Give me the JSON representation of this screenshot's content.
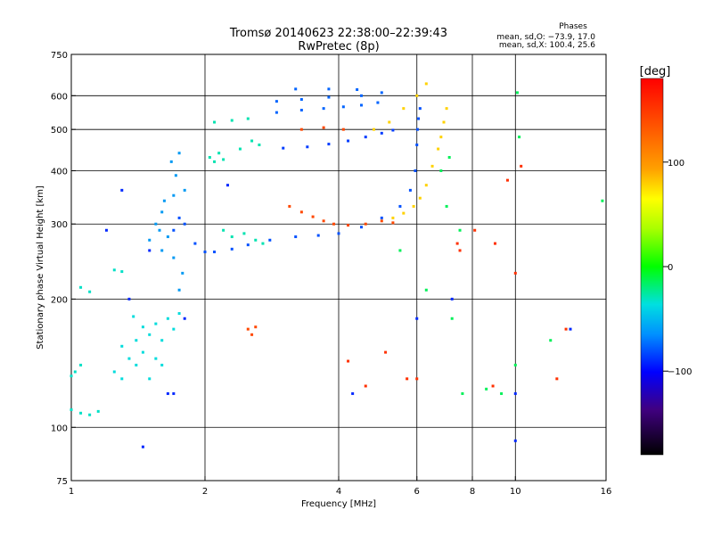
{
  "chart_data": {
    "type": "scatter",
    "title": "Tromsø 20140623 22:38:00–22:39:43",
    "subtitle": "RwPretec (8p)",
    "xlabel": "Frequency [MHz]",
    "ylabel": "Stationary phase Virtual Height [km]",
    "x_scale": "log",
    "y_scale": "log",
    "xlim": [
      1,
      16
    ],
    "ylim": [
      75,
      750
    ],
    "x_ticks": [
      1,
      2,
      4,
      6,
      8,
      10,
      16
    ],
    "x_tick_labels": [
      "1",
      "2",
      "4",
      "6",
      "8",
      "10",
      "16"
    ],
    "x_grid": [
      2,
      4,
      6,
      8,
      10
    ],
    "y_ticks": [
      75,
      100,
      200,
      300,
      400,
      500,
      600,
      750
    ],
    "y_tick_labels": [
      "75",
      "100",
      "200",
      "300",
      "400",
      "500",
      "600",
      "750"
    ],
    "y_grid": [
      100,
      200,
      300,
      400,
      500,
      600
    ],
    "grid": true,
    "phase_stats": {
      "heading": "Phases",
      "line_o": "mean, sd,O: −73.9, 17.0",
      "line_x": "mean, sd,X: 100.4, 25.6"
    },
    "colorbar": {
      "label": "[deg]",
      "range": [
        -180,
        180
      ],
      "ticks": [
        100,
        0,
        -100
      ],
      "tick_labels": [
        "100",
        "0",
        "−100"
      ]
    },
    "series": [
      {
        "color_value": -90,
        "points": [
          [
            1.7,
            290
          ],
          [
            1.75,
            310
          ],
          [
            1.8,
            300
          ],
          [
            1.9,
            270
          ],
          [
            2.0,
            258
          ],
          [
            2.1,
            258
          ],
          [
            2.3,
            262
          ],
          [
            2.5,
            268
          ],
          [
            2.8,
            275
          ],
          [
            3.2,
            280
          ],
          [
            3.6,
            282
          ],
          [
            4.0,
            285
          ],
          [
            4.5,
            295
          ],
          [
            5.0,
            310
          ],
          [
            5.5,
            330
          ],
          [
            5.8,
            360
          ],
          [
            5.95,
            400
          ],
          [
            6.0,
            460
          ],
          [
            6.02,
            500
          ],
          [
            6.05,
            530
          ],
          [
            6.1,
            560
          ]
        ]
      },
      {
        "color_value": -95,
        "points": [
          [
            3.0,
            452
          ],
          [
            3.4,
            455
          ],
          [
            3.8,
            462
          ],
          [
            4.2,
            470
          ],
          [
            4.6,
            480
          ],
          [
            5.0,
            490
          ],
          [
            5.3,
            498
          ]
        ]
      },
      {
        "color_value": -85,
        "points": [
          [
            2.9,
            548
          ],
          [
            3.3,
            555
          ],
          [
            3.7,
            560
          ],
          [
            4.1,
            565
          ],
          [
            4.5,
            570
          ],
          [
            4.9,
            578
          ],
          [
            2.9,
            582
          ],
          [
            3.3,
            588
          ],
          [
            3.8,
            595
          ],
          [
            4.5,
            600
          ],
          [
            5.0,
            610
          ],
          [
            3.2,
            622
          ],
          [
            3.8,
            622
          ],
          [
            4.4,
            620
          ]
        ]
      },
      {
        "color_value": -70,
        "points": [
          [
            1.55,
            300
          ],
          [
            1.6,
            320
          ],
          [
            1.65,
            280
          ],
          [
            1.6,
            260
          ],
          [
            1.7,
            350
          ],
          [
            1.72,
            390
          ],
          [
            1.68,
            420
          ],
          [
            1.75,
            440
          ],
          [
            1.8,
            360
          ],
          [
            1.62,
            340
          ],
          [
            1.58,
            290
          ],
          [
            1.5,
            275
          ],
          [
            1.7,
            250
          ],
          [
            1.78,
            230
          ],
          [
            1.75,
            210
          ]
        ]
      },
      {
        "color_value": -50,
        "points": [
          [
            1.3,
            155
          ],
          [
            1.35,
            145
          ],
          [
            1.4,
            160
          ],
          [
            1.45,
            150
          ],
          [
            1.5,
            165
          ],
          [
            1.55,
            175
          ],
          [
            1.6,
            160
          ],
          [
            1.65,
            180
          ],
          [
            1.4,
            140
          ],
          [
            1.3,
            130
          ],
          [
            1.5,
            130
          ],
          [
            1.6,
            140
          ],
          [
            1.7,
            170
          ],
          [
            1.75,
            185
          ],
          [
            1.45,
            172
          ],
          [
            1.38,
            182
          ],
          [
            1.25,
            135
          ],
          [
            1.55,
            145
          ]
        ]
      },
      {
        "color_value": -45,
        "points": [
          [
            1.0,
            132
          ],
          [
            1.02,
            135
          ],
          [
            1.05,
            140
          ],
          [
            1.0,
            110
          ],
          [
            1.05,
            108
          ],
          [
            1.1,
            107
          ],
          [
            1.15,
            109
          ],
          [
            1.05,
            213
          ],
          [
            1.1,
            208
          ],
          [
            1.25,
            234
          ],
          [
            1.3,
            232
          ]
        ]
      },
      {
        "color_value": -40,
        "points": [
          [
            2.05,
            430
          ],
          [
            2.15,
            440
          ],
          [
            2.1,
            420
          ],
          [
            2.2,
            425
          ],
          [
            2.4,
            450
          ],
          [
            2.55,
            470
          ],
          [
            2.65,
            460
          ],
          [
            2.1,
            520
          ],
          [
            2.3,
            525
          ],
          [
            2.5,
            530
          ],
          [
            2.2,
            290
          ],
          [
            2.3,
            280
          ],
          [
            2.45,
            285
          ],
          [
            2.6,
            275
          ],
          [
            2.7,
            270
          ]
        ]
      },
      {
        "color_value": 150,
        "points": [
          [
            3.1,
            330
          ],
          [
            3.3,
            320
          ],
          [
            3.5,
            312
          ],
          [
            3.7,
            305
          ],
          [
            3.9,
            300
          ],
          [
            4.2,
            298
          ],
          [
            4.6,
            300
          ],
          [
            5.0,
            305
          ],
          [
            5.3,
            302
          ],
          [
            3.3,
            500
          ],
          [
            3.7,
            505
          ],
          [
            4.1,
            500
          ],
          [
            2.5,
            170
          ],
          [
            2.55,
            165
          ],
          [
            2.6,
            172
          ]
        ]
      },
      {
        "color_value": 110,
        "points": [
          [
            5.3,
            310
          ],
          [
            5.6,
            318
          ],
          [
            5.9,
            330
          ],
          [
            6.1,
            345
          ],
          [
            6.3,
            370
          ],
          [
            6.5,
            410
          ],
          [
            6.7,
            450
          ],
          [
            6.8,
            480
          ],
          [
            6.9,
            520
          ],
          [
            7.0,
            560
          ],
          [
            4.8,
            500
          ],
          [
            5.2,
            520
          ],
          [
            5.6,
            560
          ],
          [
            6.0,
            600
          ],
          [
            6.3,
            640
          ]
        ]
      },
      {
        "color_value": -20,
        "points": [
          [
            6.8,
            400
          ],
          [
            7.1,
            430
          ],
          [
            7.0,
            330
          ],
          [
            7.5,
            290
          ],
          [
            5.5,
            260
          ],
          [
            6.3,
            210
          ],
          [
            7.2,
            180
          ],
          [
            7.6,
            120
          ],
          [
            8.6,
            123
          ],
          [
            9.3,
            120
          ],
          [
            10.0,
            140
          ],
          [
            12.0,
            160
          ],
          [
            15.7,
            340
          ],
          [
            10.1,
            610
          ],
          [
            10.2,
            480
          ]
        ]
      },
      {
        "color_value": 160,
        "points": [
          [
            7.4,
            270
          ],
          [
            8.1,
            290
          ],
          [
            9.0,
            270
          ],
          [
            10.3,
            410
          ],
          [
            10.0,
            230
          ],
          [
            12.4,
            130
          ],
          [
            13.0,
            170
          ],
          [
            5.1,
            150
          ],
          [
            4.6,
            125
          ],
          [
            9.6,
            380
          ],
          [
            8.9,
            125
          ],
          [
            4.2,
            143
          ],
          [
            6.0,
            130
          ],
          [
            7.5,
            260
          ],
          [
            5.7,
            130
          ]
        ]
      },
      {
        "color_value": -100,
        "points": [
          [
            1.45,
            90
          ],
          [
            1.65,
            120
          ],
          [
            1.7,
            120
          ],
          [
            1.2,
            290
          ],
          [
            1.3,
            360
          ],
          [
            10.0,
            93
          ],
          [
            4.3,
            120
          ],
          [
            10.0,
            120
          ],
          [
            6.0,
            180
          ],
          [
            7.2,
            200
          ],
          [
            13.3,
            170
          ],
          [
            1.5,
            260
          ],
          [
            1.8,
            180
          ],
          [
            2.25,
            370
          ],
          [
            1.35,
            200
          ]
        ]
      }
    ]
  }
}
